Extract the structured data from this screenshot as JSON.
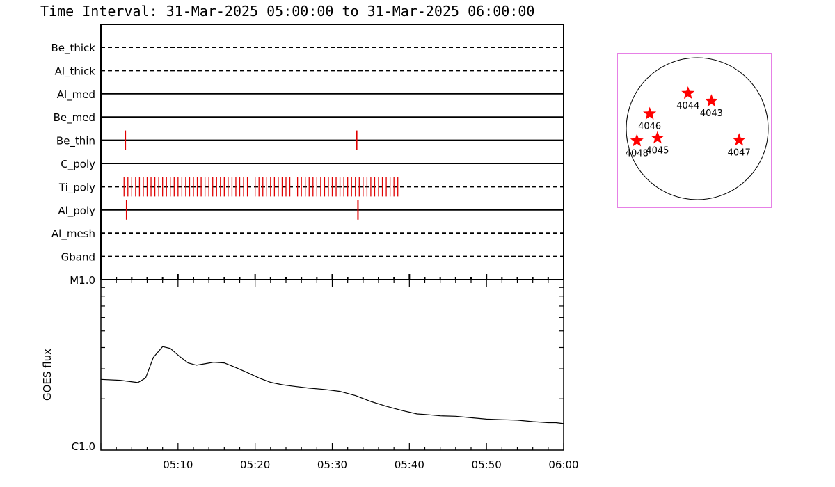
{
  "chart_data": [
    {
      "type": "timeline",
      "title": "Time Interval: 31-Mar-2025 05:00:00 to 31-Mar-2025 06:00:00",
      "filters": [
        {
          "name": "Be_thick",
          "style": "dashed",
          "events": []
        },
        {
          "name": "Al_thick",
          "style": "dashed",
          "events": []
        },
        {
          "name": "Al_med",
          "style": "solid",
          "events": []
        },
        {
          "name": "Be_med",
          "style": "solid",
          "events": []
        },
        {
          "name": "Be_thin",
          "style": "solid",
          "events": [
            "05:03:10",
            "05:33:10"
          ]
        },
        {
          "name": "C_poly",
          "style": "solid",
          "events": []
        },
        {
          "name": "Ti_poly",
          "style": "dashed",
          "events_range": {
            "start_min": 3.0,
            "end_min": 38.5,
            "step_min": 0.5,
            "gaps_min": [
              19.5,
              25.0
            ]
          }
        },
        {
          "name": "Al_poly",
          "style": "solid",
          "events": [
            "05:03:20",
            "05:33:20"
          ]
        },
        {
          "name": "Al_mesh",
          "style": "dashed",
          "events": []
        },
        {
          "name": "Gband",
          "style": "dashed",
          "events": []
        }
      ],
      "event_color": "#e00000"
    },
    {
      "type": "line",
      "ylabel": "GOES flux",
      "y_scale": "log",
      "ylim_labels": [
        "C1.0",
        "M1.0"
      ],
      "ylim": [
        1e-06,
        1e-05
      ],
      "x_ticks": [
        "05:10",
        "05:20",
        "05:30",
        "05:40",
        "05:50",
        "06:00"
      ],
      "x_tick_minutes": [
        10,
        20,
        30,
        40,
        50,
        60
      ],
      "xlim_minutes": [
        0,
        60
      ],
      "series": [
        {
          "x_minutes": [
            0,
            2.5,
            4.8,
            5.8,
            6.8,
            8.0,
            9.0,
            10.2,
            11.3,
            12.4,
            13.6,
            14.6,
            16.0,
            17.5,
            19.0,
            20.5,
            22.0,
            23.5,
            25.0,
            27.0,
            29.0,
            31.0,
            33.0,
            35.0,
            37.0,
            39.0,
            41.0,
            42.0,
            44.0,
            46.0,
            48.0,
            50.0,
            52.0,
            54.0,
            56.0,
            58.0,
            59.0,
            60.0
          ],
          "y_flux": [
            2.6e-06,
            2.57e-06,
            2.49e-06,
            2.65e-06,
            3.5e-06,
            4.05e-06,
            3.95e-06,
            3.55e-06,
            3.25e-06,
            3.15e-06,
            3.22e-06,
            3.28e-06,
            3.25e-06,
            3.05e-06,
            2.85e-06,
            2.65e-06,
            2.5e-06,
            2.42e-06,
            2.37e-06,
            2.31e-06,
            2.27e-06,
            2.21e-06,
            2.09e-06,
            1.93e-06,
            1.81e-06,
            1.71e-06,
            1.63e-06,
            1.62e-06,
            1.59e-06,
            1.58e-06,
            1.55e-06,
            1.52e-06,
            1.51e-06,
            1.5e-06,
            1.47e-06,
            1.45e-06,
            1.45e-06,
            1.43e-06
          ]
        }
      ]
    },
    {
      "type": "scatter",
      "description_type": "solar_disk_map",
      "box_color": "#cc00cc",
      "marker_color": "#ff0000",
      "points": [
        {
          "label": "4044",
          "x": -0.13,
          "y": 0.5
        },
        {
          "label": "4043",
          "x": 0.2,
          "y": 0.39
        },
        {
          "label": "4046",
          "x": -0.67,
          "y": 0.21
        },
        {
          "label": "4045",
          "x": -0.56,
          "y": -0.13
        },
        {
          "label": "4048",
          "x": -0.85,
          "y": -0.17
        },
        {
          "label": "4047",
          "x": 0.59,
          "y": -0.16
        }
      ]
    }
  ]
}
